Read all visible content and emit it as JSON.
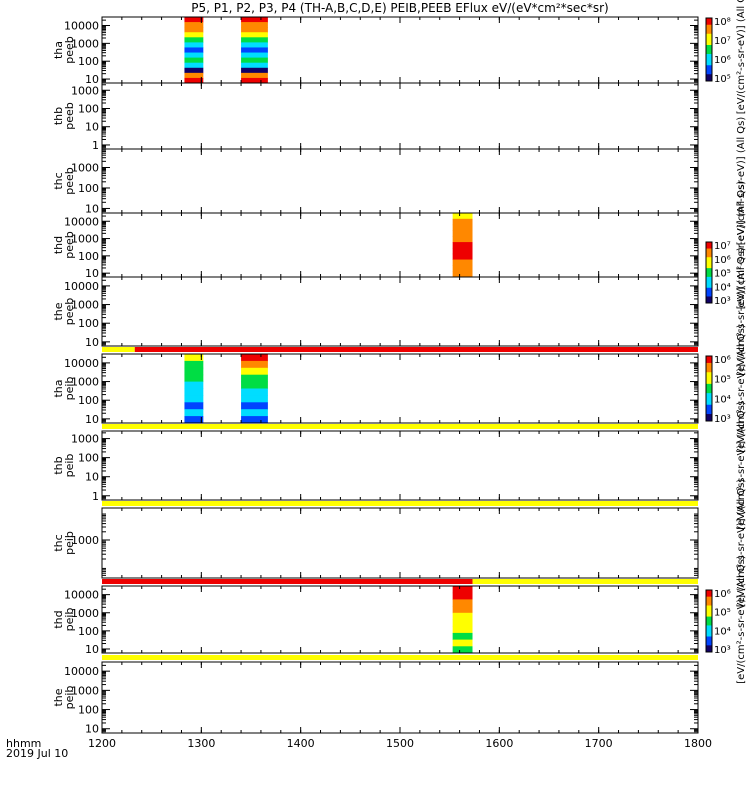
{
  "title": "P5, P1, P2, P3, P4 (TH-A,B,C,D,E) PEIB,PEEB EFlux eV/(eV*cm²*sec*sr)",
  "x_axis": {
    "label_line1": "hhmm",
    "label_line2": "2019 Jul 10"
  },
  "colors": {
    "red": "#ee0000",
    "orange": "#ff8800",
    "yellow": "#ffff00",
    "green": "#00dd44",
    "cyan": "#00ddff",
    "blue": "#0044ff",
    "dark": "#110066"
  },
  "chart_data": {
    "type": "heatmap",
    "x": {
      "min": 1200,
      "max": 1800,
      "ticks": [
        1200,
        1300,
        1400,
        1500,
        1600,
        1700,
        1800
      ]
    },
    "panels": [
      {
        "id": "tha_peeb",
        "ylabel": [
          "tha",
          "peeb"
        ],
        "yscale": "log",
        "ylim": [
          6,
          30000
        ],
        "yticks": [
          10,
          100,
          1000,
          10000
        ],
        "colorbar": {
          "label": "[eV/(cm²-s-sr-eV)] (All Qs)",
          "ticks": [
            "10⁵",
            "10⁶",
            "10⁷",
            "10⁸"
          ]
        },
        "blocks": [
          {
            "x0": 1283,
            "x1": 1302,
            "palette": "peeb_tha"
          },
          {
            "x0": 1340,
            "x1": 1367,
            "palette": "peeb_tha"
          }
        ]
      },
      {
        "id": "thb_peeb",
        "ylabel": [
          "thb",
          "peeb"
        ],
        "yscale": "log",
        "ylim": [
          0.6,
          2500
        ],
        "yticks": [
          1,
          10,
          100,
          1000
        ],
        "blocks": []
      },
      {
        "id": "thc_peeb",
        "ylabel": [
          "thc",
          "peeb"
        ],
        "yscale": "log",
        "ylim": [
          6,
          8000
        ],
        "yticks": [
          10,
          100,
          1000
        ],
        "blocks": [],
        "side_label": "[eV/(cm²-s-sr-eV)] (All Qs)"
      },
      {
        "id": "thd_peeb",
        "ylabel": [
          "thd",
          "peeb"
        ],
        "yscale": "log",
        "ylim": [
          6,
          30000
        ],
        "yticks": [
          10,
          100,
          1000,
          10000
        ],
        "colorbar": {
          "label": "[eV/(cm²-s-sr-eV)] (All Qs)",
          "ticks": [
            "10³",
            "10⁴",
            "10⁵",
            "10⁶",
            "10⁷"
          ]
        },
        "blocks": [
          {
            "x0": 1553,
            "x1": 1573,
            "palette": "peeb_thd"
          }
        ]
      },
      {
        "id": "the_peeb",
        "ylabel": [
          "the",
          "peeb"
        ],
        "yscale": "log",
        "ylim": [
          6,
          30000
        ],
        "yticks": [
          10,
          100,
          1000,
          10000
        ],
        "blocks": [],
        "side_label": "[eV/(cm²-s-sr-eV)] (All Qs)"
      },
      {
        "id": "tha_peib",
        "ylabel": [
          "tha",
          "peib"
        ],
        "yscale": "log",
        "ylim": [
          6,
          30000
        ],
        "yticks": [
          10,
          100,
          1000,
          10000
        ],
        "colorbar": {
          "label": "[eV/(cm²-s-sr-eV)] (All Qs)",
          "ticks": [
            "10³",
            "10⁴",
            "10⁵",
            "10⁶"
          ]
        },
        "flag_bar": [
          {
            "x0": 1200,
            "x1": 1233,
            "color": "yellow"
          },
          {
            "x0": 1233,
            "x1": 1800,
            "color": "red"
          }
        ],
        "blocks": [
          {
            "x0": 1283,
            "x1": 1302,
            "palette": "peib_tha"
          },
          {
            "x0": 1340,
            "x1": 1367,
            "palette": "peib_tha2"
          }
        ]
      },
      {
        "id": "thb_peib",
        "ylabel": [
          "thb",
          "peib"
        ],
        "yscale": "log",
        "ylim": [
          0.6,
          2500
        ],
        "yticks": [
          1,
          10,
          100,
          1000
        ],
        "flag_bar": [
          {
            "x0": 1200,
            "x1": 1800,
            "color": "yellow"
          }
        ],
        "blocks": [],
        "side_label": "[eV/(cm²-s-sr-eV)] (All Qs)"
      },
      {
        "id": "thc_peib",
        "ylabel": [
          "thc",
          "peib"
        ],
        "yscale": "log",
        "ylim": [
          40,
          15000
        ],
        "yticks": [
          1000
        ],
        "flag_bar": [
          {
            "x0": 1200,
            "x1": 1800,
            "color": "yellow"
          }
        ],
        "blocks": [],
        "side_label": "[eV/(cm²-s-sr-eV)] (All Qs)"
      },
      {
        "id": "thd_peib",
        "ylabel": [
          "thd",
          "peib"
        ],
        "yscale": "log",
        "ylim": [
          6,
          30000
        ],
        "yticks": [
          10,
          100,
          1000,
          10000
        ],
        "colorbar": {
          "label": "[eV/(cm²-s-sr-eV)] (All Qs)",
          "ticks": [
            "10³",
            "10⁴",
            "10⁵",
            "10⁶"
          ]
        },
        "flag_bar": [
          {
            "x0": 1200,
            "x1": 1573,
            "color": "red"
          },
          {
            "x0": 1573,
            "x1": 1800,
            "color": "yellow"
          }
        ],
        "blocks": [
          {
            "x0": 1553,
            "x1": 1573,
            "palette": "peib_thd"
          }
        ]
      },
      {
        "id": "the_peib",
        "ylabel": [
          "the",
          "peib"
        ],
        "yscale": "log",
        "ylim": [
          6,
          30000
        ],
        "yticks": [
          10,
          100,
          1000,
          10000
        ],
        "flag_bar": [
          {
            "x0": 1200,
            "x1": 1800,
            "color": "yellow"
          }
        ],
        "blocks": []
      }
    ]
  }
}
